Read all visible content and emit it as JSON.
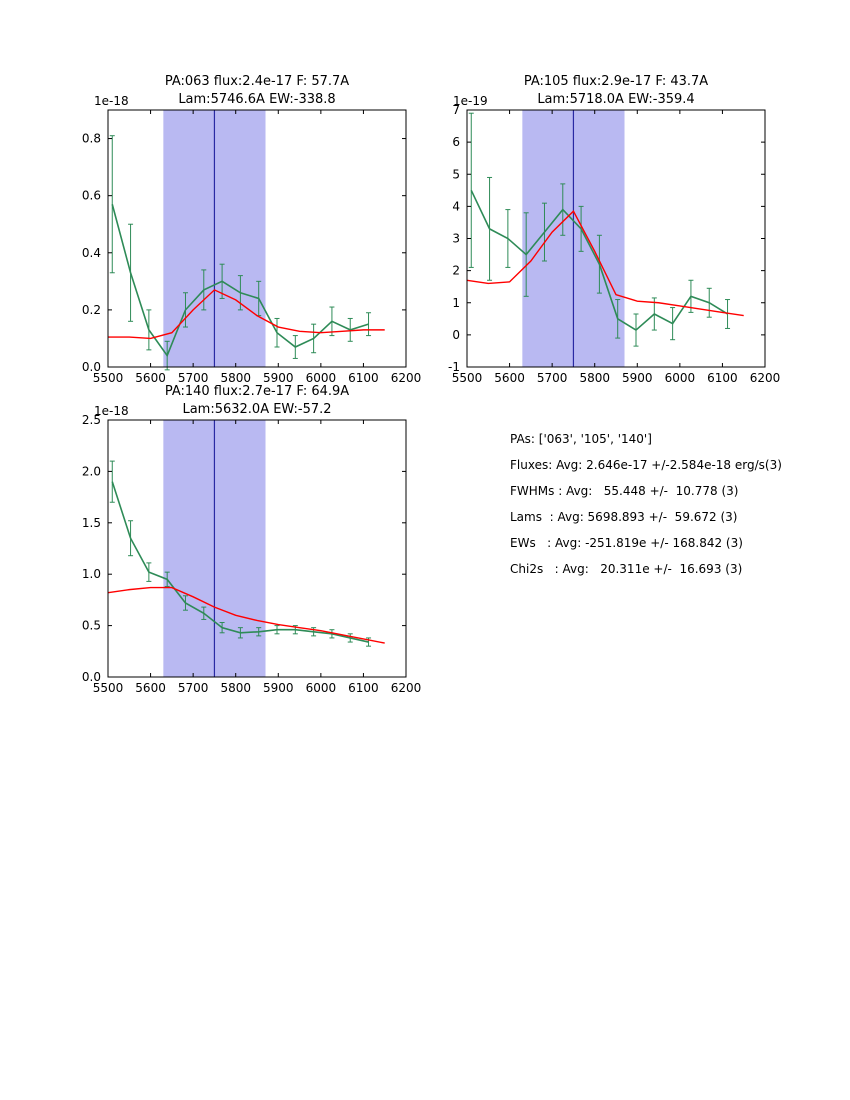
{
  "figure": {
    "background": "#ffffff"
  },
  "palette": {
    "spectrum_green": "#2e8b57",
    "fit_red": "#ff0000",
    "band_blue": "#b9b9f2",
    "vline_blue": "#2929a3",
    "axis_black": "#000000"
  },
  "stats": {
    "lines": [
      "PAs: ['063', '105', '140']",
      "Fluxes: Avg: 2.646e-17 +/-2.584e-18 erg/s(3)",
      "FWHMs : Avg:   55.448 +/-  10.778 (3)",
      "Lams  : Avg: 5698.893 +/-  59.672 (3)",
      "EWs   : Avg: -251.819e +/- 168.842 (3)",
      "Chi2s   : Avg:   20.311e +/-  16.693 (3)"
    ]
  },
  "chart_data": [
    {
      "type": "line",
      "title": "PA:063 flux:2.4e-17 F: 57.7A",
      "subtitle": "Lam:5746.6A EW:-338.8",
      "y_offset_label": "1e-18",
      "xlabel": "",
      "ylabel": "",
      "grid": false,
      "xlim": [
        5500,
        6200
      ],
      "ylim": [
        0,
        0.9
      ],
      "xticks": [
        5500,
        5600,
        5700,
        5800,
        5900,
        6000,
        6100,
        6200
      ],
      "yticks": [
        0.0,
        0.2,
        0.4,
        0.6,
        0.8
      ],
      "ytick_labels": [
        "0.0",
        "0.2",
        "0.4",
        "0.6",
        "0.8"
      ],
      "shaded_band_x": [
        5630,
        5870
      ],
      "vline_x": 5750,
      "series": [
        {
          "name": "spectrum",
          "x": [
            5510,
            5553,
            5596,
            5639,
            5682,
            5725,
            5768,
            5811,
            5854,
            5897,
            5940,
            5983,
            6026,
            6069,
            6112
          ],
          "y": [
            0.57,
            0.33,
            0.13,
            0.04,
            0.2,
            0.27,
            0.3,
            0.26,
            0.24,
            0.12,
            0.07,
            0.1,
            0.16,
            0.13,
            0.15
          ],
          "yerr": [
            0.24,
            0.17,
            0.07,
            0.05,
            0.06,
            0.07,
            0.06,
            0.06,
            0.06,
            0.05,
            0.04,
            0.05,
            0.05,
            0.04,
            0.04
          ]
        },
        {
          "name": "fit",
          "x": [
            5500,
            5550,
            5600,
            5650,
            5700,
            5750,
            5800,
            5850,
            5900,
            5950,
            6000,
            6050,
            6100,
            6150
          ],
          "y": [
            0.105,
            0.105,
            0.1,
            0.12,
            0.2,
            0.27,
            0.235,
            0.18,
            0.14,
            0.125,
            0.12,
            0.125,
            0.13,
            0.13
          ]
        }
      ]
    },
    {
      "type": "line",
      "title": "PA:105 flux:2.9e-17 F: 43.7A",
      "subtitle": "Lam:5718.0A EW:-359.4",
      "y_offset_label": "1e-19",
      "xlabel": "",
      "ylabel": "",
      "grid": false,
      "xlim": [
        5500,
        6200
      ],
      "ylim": [
        -1,
        7
      ],
      "xticks": [
        5500,
        5600,
        5700,
        5800,
        5900,
        6000,
        6100,
        6200
      ],
      "yticks": [
        -1,
        0,
        1,
        2,
        3,
        4,
        5,
        6,
        7
      ],
      "ytick_labels": [
        "-1",
        "0",
        "1",
        "2",
        "3",
        "4",
        "5",
        "6",
        "7"
      ],
      "shaded_band_x": [
        5630,
        5870
      ],
      "vline_x": 5750,
      "series": [
        {
          "name": "spectrum",
          "x": [
            5510,
            5553,
            5596,
            5639,
            5682,
            5725,
            5768,
            5811,
            5854,
            5897,
            5940,
            5983,
            6026,
            6069,
            6112
          ],
          "y": [
            4.5,
            3.3,
            3.0,
            2.5,
            3.2,
            3.9,
            3.3,
            2.2,
            0.5,
            0.15,
            0.65,
            0.35,
            1.2,
            1.0,
            0.65
          ],
          "yerr": [
            2.4,
            1.6,
            0.9,
            1.3,
            0.9,
            0.8,
            0.7,
            0.9,
            0.6,
            0.5,
            0.5,
            0.5,
            0.5,
            0.45,
            0.45
          ]
        },
        {
          "name": "fit",
          "x": [
            5500,
            5550,
            5600,
            5650,
            5700,
            5750,
            5800,
            5850,
            5900,
            5950,
            6000,
            6050,
            6100,
            6150
          ],
          "y": [
            1.7,
            1.6,
            1.65,
            2.3,
            3.2,
            3.85,
            2.6,
            1.25,
            1.05,
            1.0,
            0.9,
            0.8,
            0.7,
            0.6
          ]
        }
      ]
    },
    {
      "type": "line",
      "title": "PA:140 flux:2.7e-17 F: 64.9A",
      "subtitle": "Lam:5632.0A EW:-57.2",
      "y_offset_label": "1e-18",
      "xlabel": "",
      "ylabel": "",
      "grid": false,
      "xlim": [
        5500,
        6200
      ],
      "ylim": [
        0,
        2.5
      ],
      "xticks": [
        5500,
        5600,
        5700,
        5800,
        5900,
        6000,
        6100,
        6200
      ],
      "yticks": [
        0.0,
        0.5,
        1.0,
        1.5,
        2.0,
        2.5
      ],
      "ytick_labels": [
        "0.0",
        "0.5",
        "1.0",
        "1.5",
        "2.0",
        "2.5"
      ],
      "shaded_band_x": [
        5630,
        5870
      ],
      "vline_x": 5750,
      "series": [
        {
          "name": "spectrum",
          "x": [
            5510,
            5553,
            5596,
            5639,
            5682,
            5725,
            5768,
            5811,
            5854,
            5897,
            5940,
            5983,
            6026,
            6069,
            6112
          ],
          "y": [
            1.9,
            1.35,
            1.02,
            0.95,
            0.72,
            0.62,
            0.48,
            0.43,
            0.44,
            0.46,
            0.46,
            0.44,
            0.42,
            0.38,
            0.34
          ],
          "yerr": [
            0.2,
            0.17,
            0.09,
            0.07,
            0.07,
            0.06,
            0.05,
            0.05,
            0.04,
            0.04,
            0.04,
            0.04,
            0.04,
            0.04,
            0.04
          ]
        },
        {
          "name": "fit",
          "x": [
            5500,
            5550,
            5600,
            5650,
            5700,
            5750,
            5800,
            5850,
            5900,
            5950,
            6000,
            6050,
            6100,
            6150
          ],
          "y": [
            0.82,
            0.85,
            0.87,
            0.87,
            0.78,
            0.68,
            0.6,
            0.55,
            0.51,
            0.48,
            0.45,
            0.41,
            0.37,
            0.33
          ]
        }
      ]
    }
  ]
}
